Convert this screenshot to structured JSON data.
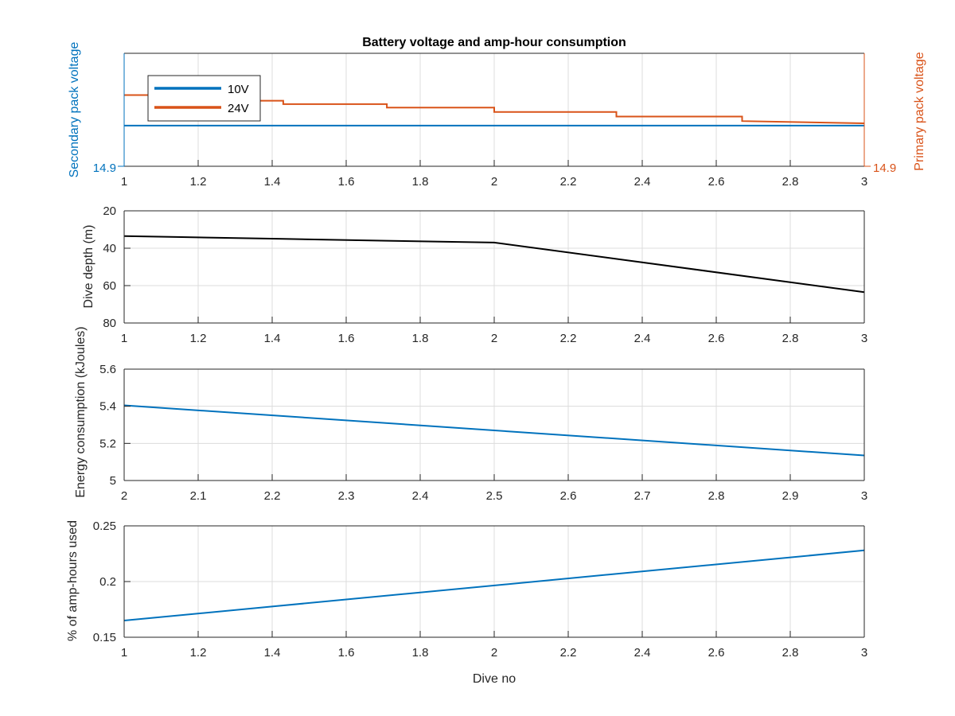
{
  "chart_data": [
    {
      "type": "line",
      "title": "Battery voltage and amp-hour consumption",
      "xlabel": "",
      "ylabel_left": "Secondary pack voltage",
      "ylabel_right": "Primary pack voltage",
      "xlim": [
        1,
        3
      ],
      "xticks": [
        "1",
        "1.2",
        "1.4",
        "1.6",
        "1.8",
        "2",
        "2.2",
        "2.4",
        "2.6",
        "2.8",
        "3"
      ],
      "yticks_left": [
        "14.9"
      ],
      "yticks_right": [
        "14.9"
      ],
      "left_axis_color": "#0072BD",
      "right_axis_color": "#D95319",
      "legend": {
        "position": "top-left",
        "entries": [
          "10V",
          "24V"
        ]
      },
      "grid": true,
      "series": [
        {
          "name": "10V",
          "axis": "left",
          "color": "#0072BD",
          "x": [
            1,
            3
          ],
          "y": [
            0.64,
            0.64
          ]
        },
        {
          "name": "24V",
          "axis": "right",
          "color": "#D95319",
          "x": [
            1,
            1.13,
            1.13,
            1.43,
            1.43,
            1.71,
            1.71,
            2,
            2,
            2.33,
            2.33,
            2.67,
            2.67,
            3
          ],
          "y": [
            0.37,
            0.37,
            0.42,
            0.42,
            0.45,
            0.45,
            0.48,
            0.48,
            0.52,
            0.52,
            0.56,
            0.56,
            0.6,
            0.62
          ]
        }
      ]
    },
    {
      "type": "line",
      "xlabel": "",
      "ylabel": "Dive depth (m)",
      "xlim": [
        1,
        3
      ],
      "ylim": [
        20,
        80
      ],
      "y_reversed": true,
      "xticks": [
        "1",
        "1.2",
        "1.4",
        "1.6",
        "1.8",
        "2",
        "2.2",
        "2.4",
        "2.6",
        "2.8",
        "3"
      ],
      "yticks": [
        "20",
        "40",
        "60",
        "80"
      ],
      "grid": true,
      "series": [
        {
          "color": "#000000",
          "x": [
            1,
            1.14,
            1.43,
            1.71,
            2,
            3
          ],
          "y": [
            33.5,
            34.0,
            35.0,
            36.0,
            37.0,
            63.5
          ]
        }
      ]
    },
    {
      "type": "line",
      "xlabel": "",
      "ylabel": "Energy consumption (kJoules)",
      "xlim": [
        2,
        3
      ],
      "ylim": [
        5,
        5.6
      ],
      "xticks": [
        "2",
        "2.1",
        "2.2",
        "2.3",
        "2.4",
        "2.5",
        "2.6",
        "2.7",
        "2.8",
        "2.9",
        "3"
      ],
      "yticks": [
        "5",
        "5.2",
        "5.4",
        "5.6"
      ],
      "grid": true,
      "series": [
        {
          "color": "#0072BD",
          "x": [
            2,
            3
          ],
          "y": [
            5.405,
            5.135
          ]
        }
      ]
    },
    {
      "type": "line",
      "xlabel": "Dive no",
      "ylabel": "% of amp-hours used",
      "xlim": [
        1,
        3
      ],
      "ylim": [
        0.15,
        0.25
      ],
      "xticks": [
        "1",
        "1.2",
        "1.4",
        "1.6",
        "1.8",
        "2",
        "2.2",
        "2.4",
        "2.6",
        "2.8",
        "3"
      ],
      "yticks": [
        "0.15",
        "0.2",
        "0.25"
      ],
      "grid": true,
      "series": [
        {
          "color": "#0072BD",
          "x": [
            1,
            3
          ],
          "y": [
            0.165,
            0.228
          ]
        }
      ]
    }
  ]
}
